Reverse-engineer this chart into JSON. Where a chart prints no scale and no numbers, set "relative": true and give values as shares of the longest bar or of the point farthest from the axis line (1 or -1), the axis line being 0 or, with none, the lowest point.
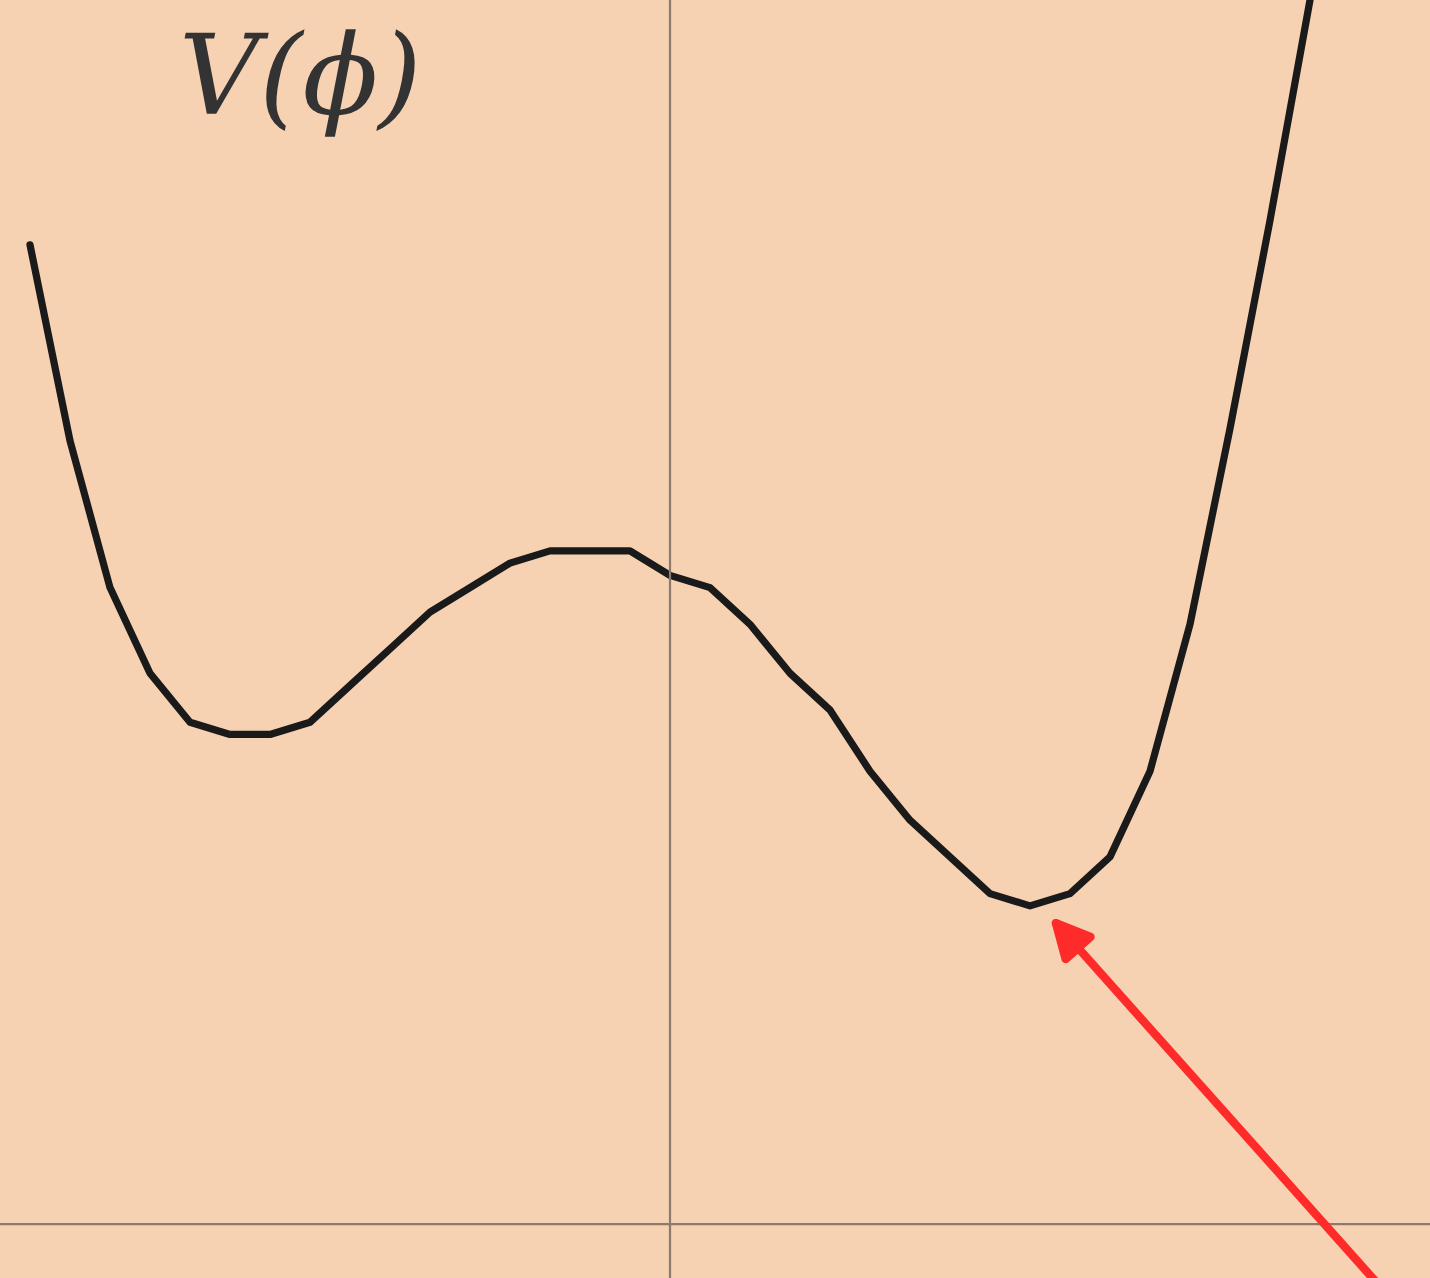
{
  "chart_data": {
    "type": "line",
    "relative": true,
    "ylabel": "V(ϕ)",
    "categories": [
      null,
      null,
      null,
      null,
      null,
      null,
      null,
      null,
      null,
      null,
      null,
      null,
      null,
      null,
      null,
      null,
      null,
      null,
      null,
      null,
      null,
      null,
      null,
      null,
      null,
      null,
      null,
      null,
      null,
      null,
      null,
      null,
      null
    ],
    "series": [
      {
        "color": "#1a1a1a",
        "values": [
          0.8,
          0.64,
          0.52,
          0.45,
          0.41,
          0.4,
          0.4,
          0.41,
          0.44,
          0.47,
          0.5,
          0.52,
          0.54,
          0.55,
          0.55,
          0.55,
          0.53,
          0.52,
          0.49,
          0.45,
          0.42,
          0.37,
          0.33,
          0.3,
          0.27,
          0.26,
          0.27,
          0.3,
          0.37,
          0.49,
          0.65,
          0.82,
          1.0
        ]
      }
    ],
    "marker": "none",
    "line_style": "solid",
    "tick_labels": false
  }
}
